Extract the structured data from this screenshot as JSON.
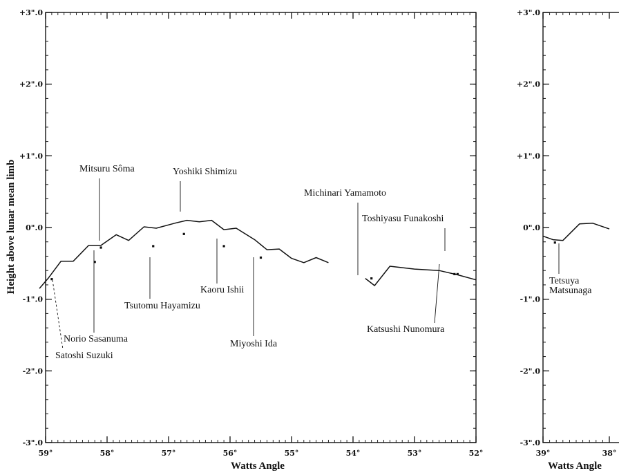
{
  "chart_data": [
    {
      "type": "line",
      "panel": "main",
      "xlabel": "Watts Angle",
      "ylabel": "Height above lunar mean limb",
      "xlim": [
        59,
        52
      ],
      "ylim": [
        -3,
        3
      ],
      "x_ticks": [
        59,
        58,
        57,
        56,
        55,
        54,
        53,
        52
      ],
      "x_tick_labels": [
        "59°",
        "58°",
        "57°",
        "56°",
        "55°",
        "54°",
        "53°",
        "52°"
      ],
      "y_ticks": [
        3,
        2,
        1,
        0,
        -1,
        -2,
        -3
      ],
      "y_tick_labels": [
        "+3\".0",
        "+2\".0",
        "+1\".0",
        "0\".0",
        "-1\".0",
        "-2\".0",
        "-3\".0"
      ],
      "profile_segments": [
        [
          [
            59.1,
            -0.85
          ],
          [
            58.95,
            -0.7
          ],
          [
            58.75,
            -0.47
          ],
          [
            58.55,
            -0.47
          ],
          [
            58.3,
            -0.25
          ],
          [
            58.1,
            -0.25
          ],
          [
            57.85,
            -0.1
          ],
          [
            57.65,
            -0.18
          ],
          [
            57.4,
            0.01
          ],
          [
            57.2,
            -0.01
          ],
          [
            56.9,
            0.06
          ],
          [
            56.7,
            0.1
          ],
          [
            56.5,
            0.08
          ],
          [
            56.3,
            0.1
          ],
          [
            56.1,
            -0.03
          ],
          [
            55.9,
            -0.01
          ],
          [
            55.6,
            -0.17
          ],
          [
            55.4,
            -0.31
          ],
          [
            55.2,
            -0.3
          ],
          [
            55.0,
            -0.43
          ],
          [
            54.8,
            -0.49
          ],
          [
            54.6,
            -0.42
          ],
          [
            54.4,
            -0.49
          ]
        ],
        [
          [
            53.8,
            -0.71
          ],
          [
            53.65,
            -0.81
          ],
          [
            53.4,
            -0.54
          ],
          [
            53.0,
            -0.58
          ],
          [
            52.6,
            -0.6
          ],
          [
            52.3,
            -0.66
          ],
          [
            52.0,
            -0.73
          ]
        ]
      ],
      "observations": [
        {
          "name": "Satoshi Suzuki",
          "x": 58.9,
          "y": -0.72
        },
        {
          "name": "Norio Sasanuma",
          "x": 58.2,
          "y": -0.48
        },
        {
          "name": "Mitsuru Sôma",
          "x": 58.1,
          "y": -0.28
        },
        {
          "name": "Tsutomu Hayamizu",
          "x": 57.25,
          "y": -0.26
        },
        {
          "name": "Yoshiki Shimizu",
          "x": 56.75,
          "y": -0.09
        },
        {
          "name": "Kaoru Ishii",
          "x": 56.1,
          "y": -0.26
        },
        {
          "name": "Miyoshi Ida",
          "x": 55.5,
          "y": -0.42
        },
        {
          "name": "Michinari Yamamoto",
          "x": 53.7,
          "y": -0.71
        },
        {
          "name": "Toshiyasu Funakoshi",
          "x": 52.3,
          "y": -0.65
        },
        {
          "name": "Katsushi Nunomura",
          "x": 52.35,
          "y": -0.65
        }
      ]
    },
    {
      "type": "line",
      "panel": "inset",
      "xlabel": "Watts Angle",
      "xlim": [
        39,
        38
      ],
      "ylim": [
        -3,
        3
      ],
      "x_ticks": [
        39,
        38
      ],
      "x_tick_labels": [
        "39°",
        "38°"
      ],
      "y_ticks": [
        3,
        2,
        1,
        0,
        -1,
        -2,
        -3
      ],
      "y_tick_labels": [
        "+3\".0",
        "+2\".0",
        "+1\".0",
        "0\".0",
        "-1\".0",
        "-2\".0",
        "-3\".0"
      ],
      "profile_segments": [
        [
          [
            39.0,
            -0.12
          ],
          [
            38.85,
            -0.17
          ],
          [
            38.7,
            -0.18
          ],
          [
            38.45,
            0.05
          ],
          [
            38.25,
            0.06
          ],
          [
            38.0,
            -0.02
          ]
        ]
      ],
      "observations": [
        {
          "name": "Tetsuya Matsunaga",
          "x": 38.82,
          "y": -0.21
        }
      ]
    }
  ]
}
